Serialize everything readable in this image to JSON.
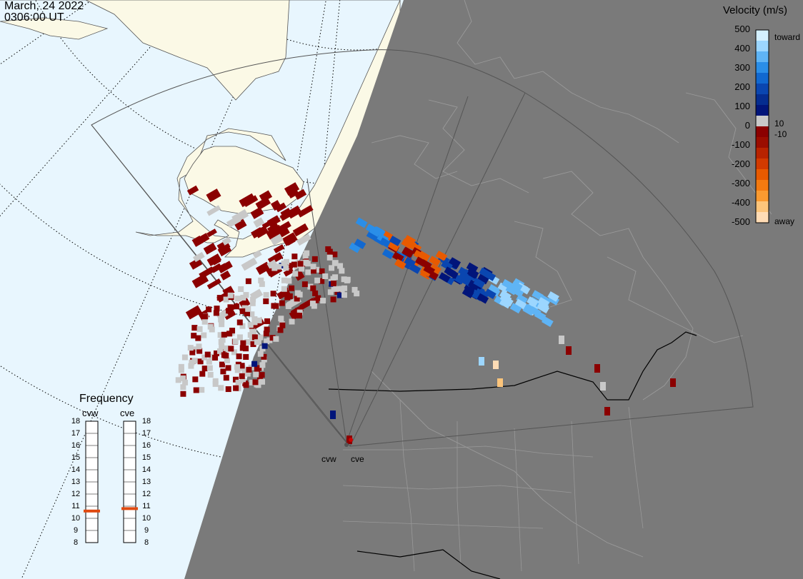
{
  "header": {
    "date": "March, 24 2022",
    "time": "0306:00 UT"
  },
  "colorbar": {
    "title": "Velocity (m/s)",
    "ticks": [
      "500",
      "400",
      "300",
      "200",
      "100",
      "0",
      "-100",
      "-200",
      "-300",
      "-400",
      "-500"
    ],
    "small_pos": "10",
    "small_neg": "-10",
    "toward": "toward",
    "away": "away",
    "colors": [
      "#d4f0ff",
      "#9cd6ff",
      "#5fb4f5",
      "#2a8ee8",
      "#1168d0",
      "#0a46b0",
      "#052d90",
      "#01157a",
      "#c8c8c8",
      "#8b0000",
      "#9b0d00",
      "#b82300",
      "#d23a00",
      "#e85a00",
      "#f47a10",
      "#fb9a30",
      "#fdc57b",
      "#ffdcb5"
    ]
  },
  "frequency": {
    "title": "Frequency",
    "radars": [
      "cvw",
      "cve"
    ],
    "levels": [
      "18",
      "17",
      "16",
      "15",
      "14",
      "13",
      "12",
      "11",
      "10",
      "9",
      "8"
    ],
    "cvw_value_mhz": 10.6,
    "cve_value_mhz": 10.8,
    "marker_color": "#e04a10"
  },
  "radar_sites": {
    "west": "cvw",
    "east": "cve"
  },
  "colors": {
    "ocean": "#e8f6fe",
    "land": "#fbf9e6",
    "night": "#7a7a7a",
    "grid": "#000000"
  }
}
